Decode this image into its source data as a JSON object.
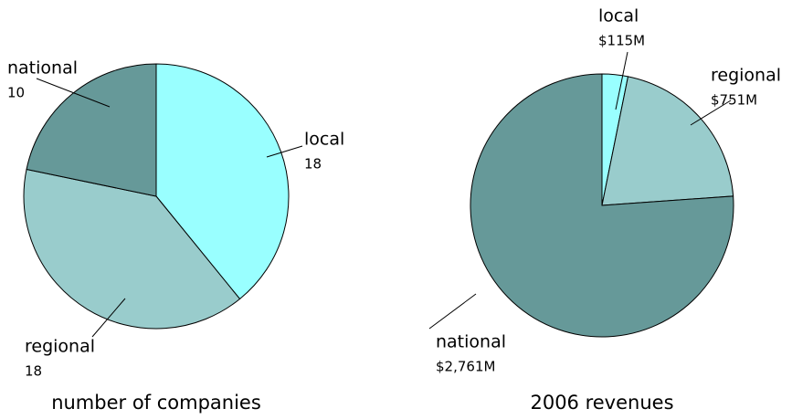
{
  "chart_data": [
    {
      "type": "pie",
      "title": "number of companies",
      "categories": [
        "local",
        "regional",
        "national"
      ],
      "values": [
        18,
        18,
        10
      ],
      "colors": [
        "#99ffff",
        "#99cccc",
        "#669999"
      ]
    },
    {
      "type": "pie",
      "title": "2006 revenues",
      "categories": [
        "local",
        "regional",
        "national"
      ],
      "values": [
        115,
        751,
        2761
      ],
      "value_labels": [
        "$115M",
        "$751M",
        "$2,761M"
      ],
      "colors": [
        "#99ffff",
        "#99cccc",
        "#669999"
      ]
    }
  ]
}
